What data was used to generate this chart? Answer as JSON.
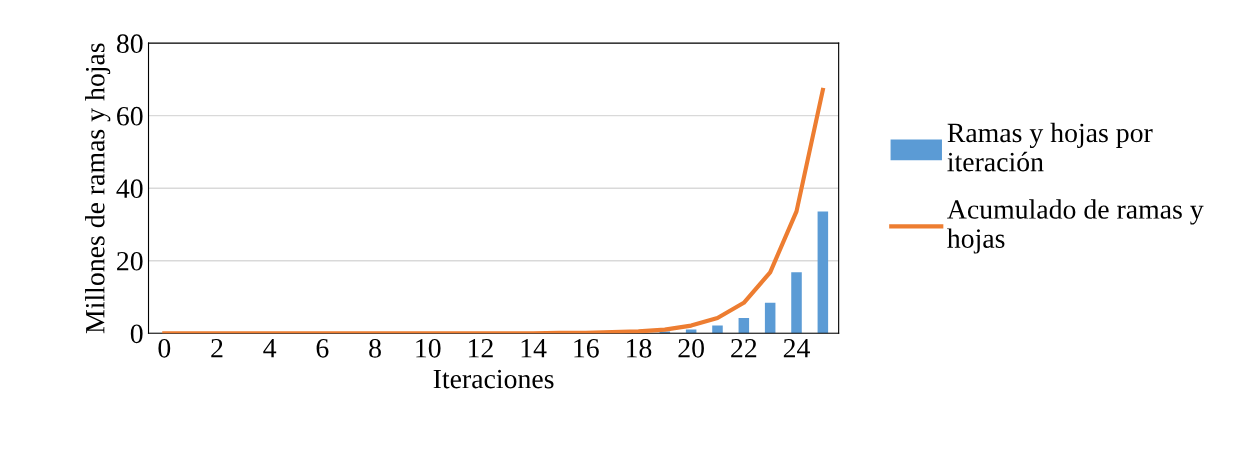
{
  "chart_data": {
    "type": "bar",
    "xlabel": "Iteraciones",
    "ylabel": "Millones de ramas y hojas",
    "categories": [
      "0",
      null,
      "2",
      null,
      "4",
      null,
      "6",
      null,
      "8",
      null,
      "10",
      null,
      "12",
      null,
      "14",
      null,
      "16",
      null,
      "18",
      null,
      "20",
      null,
      "22",
      null,
      "24",
      null
    ],
    "series": [
      {
        "name": "Ramas y hojas por iteración",
        "color": "#5b9bd5",
        "values": [
          0,
          0,
          0,
          0,
          0,
          0,
          0,
          0,
          0,
          0,
          0,
          0,
          0,
          0,
          0,
          0,
          null,
          null,
          null,
          0.5,
          1.0,
          2.1,
          4.2,
          8.4,
          16.8,
          33.6
        ]
      },
      {
        "name": "Acumulado de ramas y hojas",
        "type": "line",
        "color": "#ed7d31",
        "values": [
          0,
          0,
          0,
          0,
          0,
          0,
          0,
          0,
          0,
          0,
          0,
          0,
          0,
          0,
          0,
          0.1,
          0.1,
          0.3,
          0.5,
          1.0,
          2.1,
          4.2,
          8.4,
          16.8,
          33.6,
          67.1
        ]
      }
    ],
    "ylim": [
      0,
      80
    ],
    "yticks": [
      0,
      20,
      40,
      60,
      80
    ],
    "grid": "y",
    "legend": "right",
    "marker": "none",
    "line_style": "solid"
  }
}
